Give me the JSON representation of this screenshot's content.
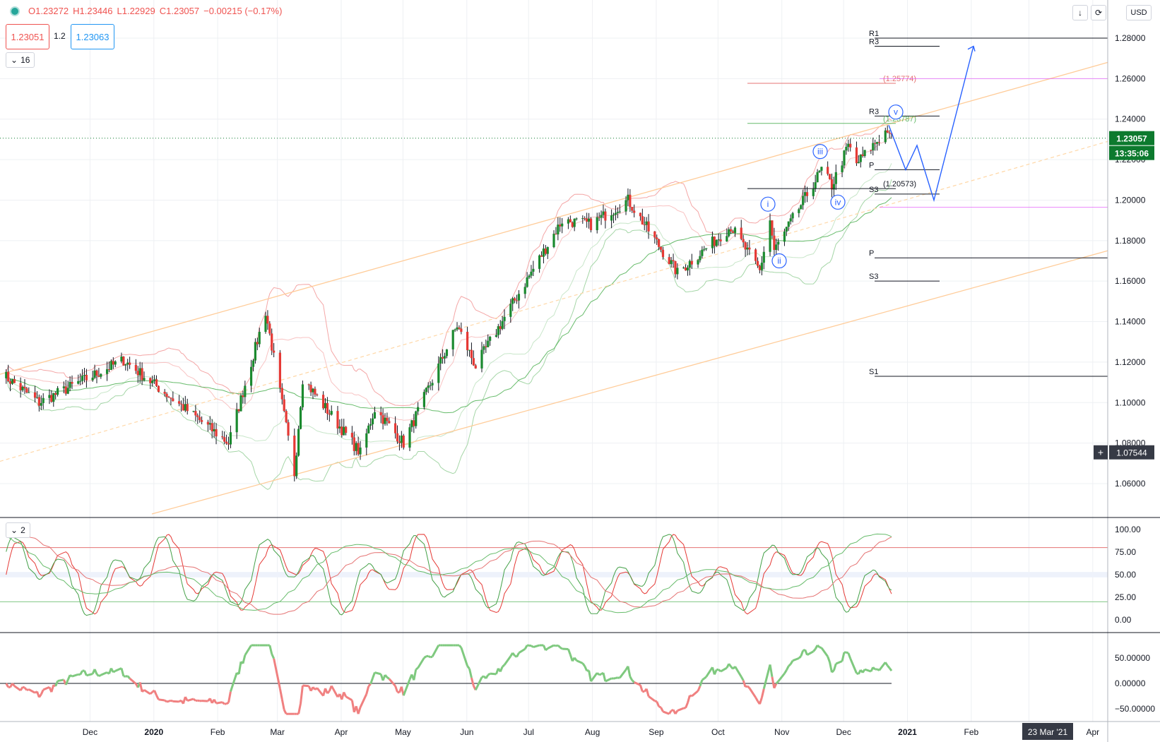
{
  "header": {
    "open": "O1.23272",
    "high": "H1.23446",
    "low": "L1.22929",
    "close": "C1.23057",
    "change": "−0.00215 (−0.17%)",
    "bid": "1.23051",
    "spread": "1.2",
    "ask": "1.23063",
    "indicators_count": "16",
    "stoch_count": "2",
    "currency": "USD"
  },
  "colors": {
    "up": "#1b8a2f",
    "down": "#e53935",
    "accent": "#2962ff",
    "price_label": "#0d7a2e",
    "crosshair_label": "#363a45"
  },
  "chart_data": {
    "type": "candlestick",
    "price_axis": {
      "min": 1.045,
      "max": 1.29,
      "ticks": [
        "1.28000",
        "1.26000",
        "1.24000",
        "1.22000",
        "1.20000",
        "1.18000",
        "1.16000",
        "1.14000",
        "1.12000",
        "1.10000",
        "1.08000",
        "1.06000"
      ]
    },
    "time_axis": [
      "Dec",
      "2020",
      "Feb",
      "Mar",
      "Apr",
      "May",
      "Jun",
      "Jul",
      "Aug",
      "Sep",
      "Oct",
      "Nov",
      "Dec",
      "2021",
      "Feb",
      "Mar",
      "Apr"
    ],
    "last_price": "1.23057",
    "countdown": "13:35:06",
    "crosshair_price": "1.07544",
    "crosshair_date": "23 Mar '21",
    "anchors": [
      [
        "2019-11-01",
        1.115
      ],
      [
        "2019-11-20",
        1.1
      ],
      [
        "2019-12-31",
        1.121
      ],
      [
        "2020-02-20",
        1.08
      ],
      [
        "2020-03-09",
        1.145
      ],
      [
        "2020-03-23",
        1.065
      ],
      [
        "2020-03-27",
        1.112
      ],
      [
        "2020-04-24",
        1.075
      ],
      [
        "2020-05-01",
        1.097
      ],
      [
        "2020-05-15",
        1.08
      ],
      [
        "2020-06-10",
        1.138
      ],
      [
        "2020-06-19",
        1.118
      ],
      [
        "2020-07-31",
        1.19
      ],
      [
        "2020-08-14",
        1.188
      ],
      [
        "2020-09-01",
        1.2
      ],
      [
        "2020-09-25",
        1.164
      ],
      [
        "2020-10-21",
        1.187
      ],
      [
        "2020-11-04",
        1.165
      ],
      [
        "2020-11-09",
        1.19
      ],
      [
        "2020-11-11",
        1.175
      ],
      [
        "2020-12-04",
        1.215
      ],
      [
        "2020-12-09",
        1.207
      ],
      [
        "2020-12-17",
        1.227
      ],
      [
        "2020-12-21",
        1.218
      ],
      [
        "2021-01-05",
        1.235
      ],
      [
        "2021-01-06",
        1.2306
      ]
    ],
    "levels": [
      {
        "label": "R1",
        "price": 1.28
      },
      {
        "label": "R3",
        "price": 1.276
      },
      {
        "label": "(1.25774)",
        "price": 1.2577
      },
      {
        "label": "R3",
        "price": 1.2415
      },
      {
        "label": "(1.23787)",
        "price": 1.2379
      },
      {
        "label": "P",
        "price": 1.215
      },
      {
        "label": "(1.20573)",
        "price": 1.2057
      },
      {
        "label": "S3",
        "price": 1.203
      },
      {
        "label": "P",
        "price": 1.1715
      },
      {
        "label": "S3",
        "price": 1.16
      },
      {
        "label": "S1",
        "price": 1.113
      }
    ],
    "wave_labels": [
      "i",
      "ii",
      "iii",
      "iv",
      "v"
    ],
    "stoch_axis": [
      "100.00",
      "75.00",
      "50.00",
      "25.00",
      "0.00"
    ],
    "osc_axis": [
      "50.00000",
      "0.00000",
      "−50.00000"
    ]
  }
}
